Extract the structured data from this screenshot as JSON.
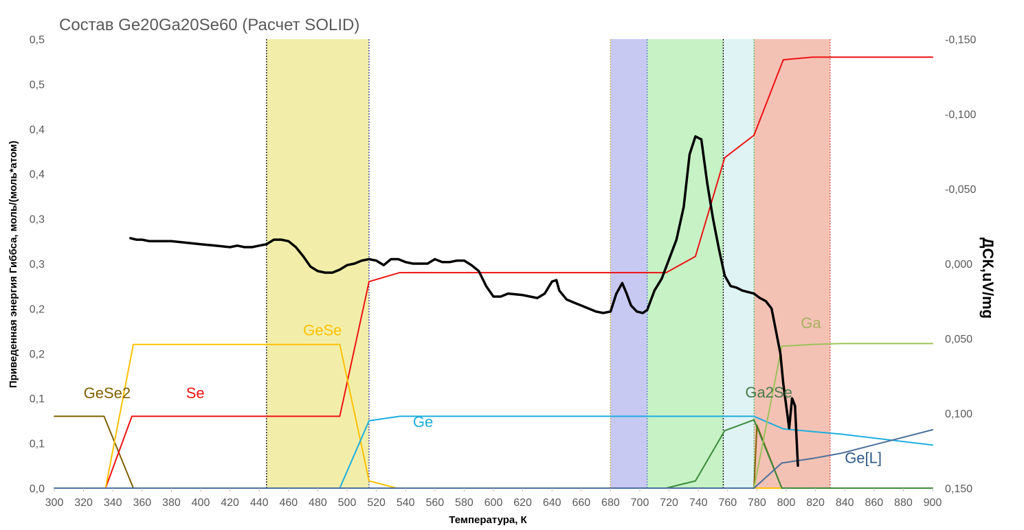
{
  "chart_data": {
    "type": "line",
    "title": "Состав Ge20Ga20Se60 (Расчет SOLID)",
    "xlabel": "Температура, К",
    "ylabel": "Приведенная энергия Гиббса, моль/(моль*атом)",
    "y2label": "ДСК,uV/mg",
    "xlim": [
      300,
      900
    ],
    "ylim": [
      0,
      0.5
    ],
    "y2lim": [
      0.15,
      -0.15
    ],
    "x_ticks": [
      "300",
      "320",
      "340",
      "360",
      "380",
      "400",
      "420",
      "440",
      "460",
      "480",
      "500",
      "520",
      "540",
      "560",
      "580",
      "600",
      "620",
      "640",
      "660",
      "680",
      "700",
      "720",
      "740",
      "760",
      "780",
      "800",
      "820",
      "840",
      "860",
      "880",
      "900"
    ],
    "y_ticks": [
      "0,0",
      "0,1",
      "0,1",
      "0,2",
      "0,2",
      "0,3",
      "0,3",
      "0,4",
      "0,4",
      "0,5",
      "0,5"
    ],
    "y2_ticks": [
      "-0,150",
      "-0,100",
      "-0,050",
      "0,000",
      "0,050",
      "0,100",
      "0,150"
    ],
    "grid": false,
    "bands": [
      {
        "x": [
          445,
          515
        ],
        "color": "#f2eeaa"
      },
      {
        "x": [
          680,
          705
        ],
        "color": "#c8c9f2"
      },
      {
        "x": [
          705,
          757
        ],
        "color": "#c6f2c6"
      },
      {
        "x": [
          757,
          778
        ],
        "color": "#dff3f4"
      },
      {
        "x": [
          778,
          830
        ],
        "color": "#f4c2b5"
      }
    ],
    "phase_lines": [
      {
        "x": 445,
        "color": "#000000"
      },
      {
        "x": 515,
        "color": "#3a3a9a"
      },
      {
        "x": 680,
        "color": "#c0a050"
      },
      {
        "x": 705,
        "color": "#5577cc"
      },
      {
        "x": 757,
        "color": "#000000"
      },
      {
        "x": 778,
        "color": "#55bb55"
      },
      {
        "x": 830,
        "color": "#dd5555"
      }
    ],
    "series": [
      {
        "name": "GeSe2",
        "color": "#7f6000",
        "axis": "left",
        "points": [
          [
            300,
            0.08
          ],
          [
            334,
            0.08
          ],
          [
            354,
            0.0
          ],
          [
            778,
            0.0
          ],
          [
            780,
            0.07
          ],
          [
            797,
            0.0
          ],
          [
            900,
            0.0
          ]
        ]
      },
      {
        "name": "Se",
        "color": "#ee1111",
        "axis": "left",
        "points": [
          [
            300,
            0.0
          ],
          [
            335,
            0.0
          ],
          [
            353,
            0.08
          ],
          [
            495,
            0.08
          ],
          [
            515,
            0.23
          ],
          [
            536,
            0.24
          ],
          [
            718,
            0.24
          ],
          [
            738,
            0.258
          ],
          [
            758,
            0.368
          ],
          [
            778,
            0.393
          ],
          [
            798,
            0.477
          ],
          [
            818,
            0.48
          ],
          [
            900,
            0.48
          ]
        ]
      },
      {
        "name": "GeSe",
        "color": "#ffc000",
        "axis": "left",
        "points": [
          [
            300,
            0.0
          ],
          [
            335,
            0.0
          ],
          [
            354,
            0.16
          ],
          [
            495,
            0.16
          ],
          [
            515,
            0.008
          ],
          [
            534,
            0.0
          ],
          [
            900,
            0.0
          ]
        ]
      },
      {
        "name": "Ge",
        "color": "#1cadde",
        "axis": "left",
        "points": [
          [
            300,
            0.0
          ],
          [
            495,
            0.0
          ],
          [
            515,
            0.075
          ],
          [
            536,
            0.08
          ],
          [
            778,
            0.08
          ],
          [
            798,
            0.066
          ],
          [
            838,
            0.06
          ],
          [
            900,
            0.048
          ]
        ]
      },
      {
        "name": "Ga2Se",
        "color": "#3a8a3a",
        "axis": "left",
        "points": [
          [
            300,
            0.0
          ],
          [
            697,
            0.0
          ],
          [
            718,
            0.0
          ],
          [
            738,
            0.008
          ],
          [
            758,
            0.064
          ],
          [
            778,
            0.076
          ],
          [
            797,
            0.0
          ],
          [
            900,
            0.0
          ]
        ]
      },
      {
        "name": "Ga",
        "color": "#9bc25a",
        "axis": "left",
        "points": [
          [
            300,
            0.0
          ],
          [
            778,
            0.0
          ],
          [
            797,
            0.158
          ],
          [
            818,
            0.16
          ],
          [
            838,
            0.161
          ],
          [
            900,
            0.161
          ]
        ]
      },
      {
        "name": "Ge[L]",
        "color": "#4a6f9a",
        "axis": "left",
        "points": [
          [
            300,
            0.0
          ],
          [
            778,
            0.0
          ],
          [
            797,
            0.028
          ],
          [
            818,
            0.033
          ],
          [
            838,
            0.039
          ],
          [
            900,
            0.065
          ]
        ]
      },
      {
        "name": "",
        "color": "#000000",
        "axis": "right",
        "points": [
          [
            352,
            -0.017
          ],
          [
            356,
            -0.016
          ],
          [
            360,
            -0.016
          ],
          [
            365,
            -0.015
          ],
          [
            370,
            -0.015
          ],
          [
            380,
            -0.015
          ],
          [
            390,
            -0.014
          ],
          [
            400,
            -0.013
          ],
          [
            410,
            -0.012
          ],
          [
            420,
            -0.011
          ],
          [
            425,
            -0.012
          ],
          [
            430,
            -0.011
          ],
          [
            435,
            -0.011
          ],
          [
            440,
            -0.012
          ],
          [
            445,
            -0.013
          ],
          [
            450,
            -0.016
          ],
          [
            455,
            -0.016
          ],
          [
            460,
            -0.015
          ],
          [
            465,
            -0.011
          ],
          [
            470,
            -0.005
          ],
          [
            475,
            0.002
          ],
          [
            480,
            0.005
          ],
          [
            485,
            0.006
          ],
          [
            490,
            0.006
          ],
          [
            495,
            0.004
          ],
          [
            500,
            0.001
          ],
          [
            505,
            -0.0
          ],
          [
            510,
            -0.002
          ],
          [
            515,
            -0.003
          ],
          [
            520,
            -0.002
          ],
          [
            525,
            0.001
          ],
          [
            530,
            -0.003
          ],
          [
            535,
            -0.003
          ],
          [
            540,
            -0.001
          ],
          [
            545,
            0.0
          ],
          [
            550,
            -0.0
          ],
          [
            555,
            0.0
          ],
          [
            560,
            -0.003
          ],
          [
            565,
            -0.001
          ],
          [
            570,
            -0.001
          ],
          [
            575,
            -0.002
          ],
          [
            580,
            -0.002
          ],
          [
            585,
            0.001
          ],
          [
            590,
            0.005
          ],
          [
            595,
            0.015
          ],
          [
            600,
            0.022
          ],
          [
            605,
            0.022
          ],
          [
            610,
            0.02
          ],
          [
            620,
            0.021
          ],
          [
            630,
            0.023
          ],
          [
            635,
            0.02
          ],
          [
            640,
            0.012
          ],
          [
            643,
            0.011
          ],
          [
            645,
            0.018
          ],
          [
            650,
            0.024
          ],
          [
            655,
            0.026
          ],
          [
            660,
            0.028
          ],
          [
            665,
            0.03
          ],
          [
            670,
            0.032
          ],
          [
            675,
            0.033
          ],
          [
            680,
            0.032
          ],
          [
            684,
            0.02
          ],
          [
            688,
            0.013
          ],
          [
            691,
            0.02
          ],
          [
            694,
            0.028
          ],
          [
            698,
            0.032
          ],
          [
            702,
            0.033
          ],
          [
            705,
            0.031
          ],
          [
            710,
            0.018
          ],
          [
            715,
            0.01
          ],
          [
            720,
            -0.003
          ],
          [
            725,
            -0.016
          ],
          [
            730,
            -0.038
          ],
          [
            734,
            -0.073
          ],
          [
            738,
            -0.085
          ],
          [
            742,
            -0.083
          ],
          [
            746,
            -0.054
          ],
          [
            750,
            -0.03
          ],
          [
            754,
            -0.01
          ],
          [
            758,
            0.008
          ],
          [
            762,
            0.015
          ],
          [
            766,
            0.016
          ],
          [
            770,
            0.018
          ],
          [
            774,
            0.019
          ],
          [
            778,
            0.02
          ],
          [
            782,
            0.023
          ],
          [
            786,
            0.025
          ],
          [
            790,
            0.03
          ],
          [
            793,
            0.045
          ],
          [
            796,
            0.06
          ],
          [
            798,
            0.08
          ],
          [
            800,
            0.095
          ],
          [
            802,
            0.11
          ],
          [
            804,
            0.09
          ],
          [
            806,
            0.095
          ],
          [
            808,
            0.135
          ]
        ]
      }
    ],
    "label_positions_note": "series names printed on the chart next to their curves",
    "labels": [
      {
        "text": "GeSe2",
        "x": 320,
        "y": 0.1,
        "color": "#7f6000"
      },
      {
        "text": "Se",
        "x": 390,
        "y": 0.1,
        "color": "#ee1111"
      },
      {
        "text": "GeSe",
        "x": 470,
        "y": 0.17,
        "color": "#ffc000"
      },
      {
        "text": "Ge",
        "x": 545,
        "y": 0.068,
        "color": "#1cadde"
      },
      {
        "text": "Ga2Se",
        "x": 772,
        "y": 0.101,
        "color": "#4a7a4a"
      },
      {
        "text": "Ga",
        "x": 810,
        "y": 0.178,
        "color": "#a8b060"
      },
      {
        "text": "Ge[L]",
        "x": 840,
        "y": 0.028,
        "color": "#305a86"
      }
    ]
  }
}
